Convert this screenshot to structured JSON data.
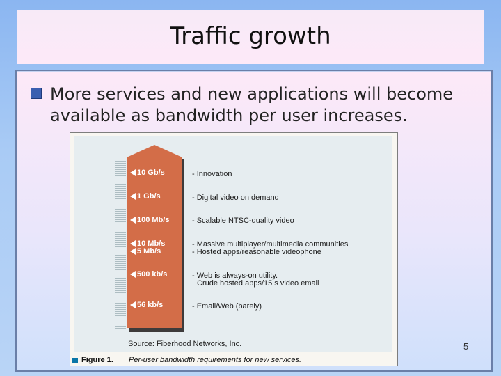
{
  "slide": {
    "title": "Traffic growth",
    "bullet": "More services and new applications will become available as bandwidth per user increases.",
    "page_number": "5"
  },
  "figure": {
    "levels": [
      {
        "label": "10 Gb/s"
      },
      {
        "label": "1 Gb/s"
      },
      {
        "label": "100 Mb/s"
      },
      {
        "label": "10 Mb/s"
      },
      {
        "label": "5 Mb/s"
      },
      {
        "label": "500 kb/s"
      },
      {
        "label": "56 kb/s"
      }
    ],
    "services": [
      "- Innovation",
      "- Digital video on demand",
      "- Scalable NTSC-quality video",
      "- Massive multiplayer/multimedia communities",
      "- Hosted apps/reasonable videophone",
      "- Web is always-on utility.",
      "Crude hosted apps/15 s video email",
      "- Email/Web (barely)"
    ],
    "source": "Source: Fiberhood Networks, Inc.",
    "caption_label": "Figure 1.",
    "caption_text": "Per-user bandwidth requirements for new services.",
    "colors": {
      "bar": "#d36d48",
      "background": "#e6edf0",
      "accent": "#0a76a8"
    }
  }
}
